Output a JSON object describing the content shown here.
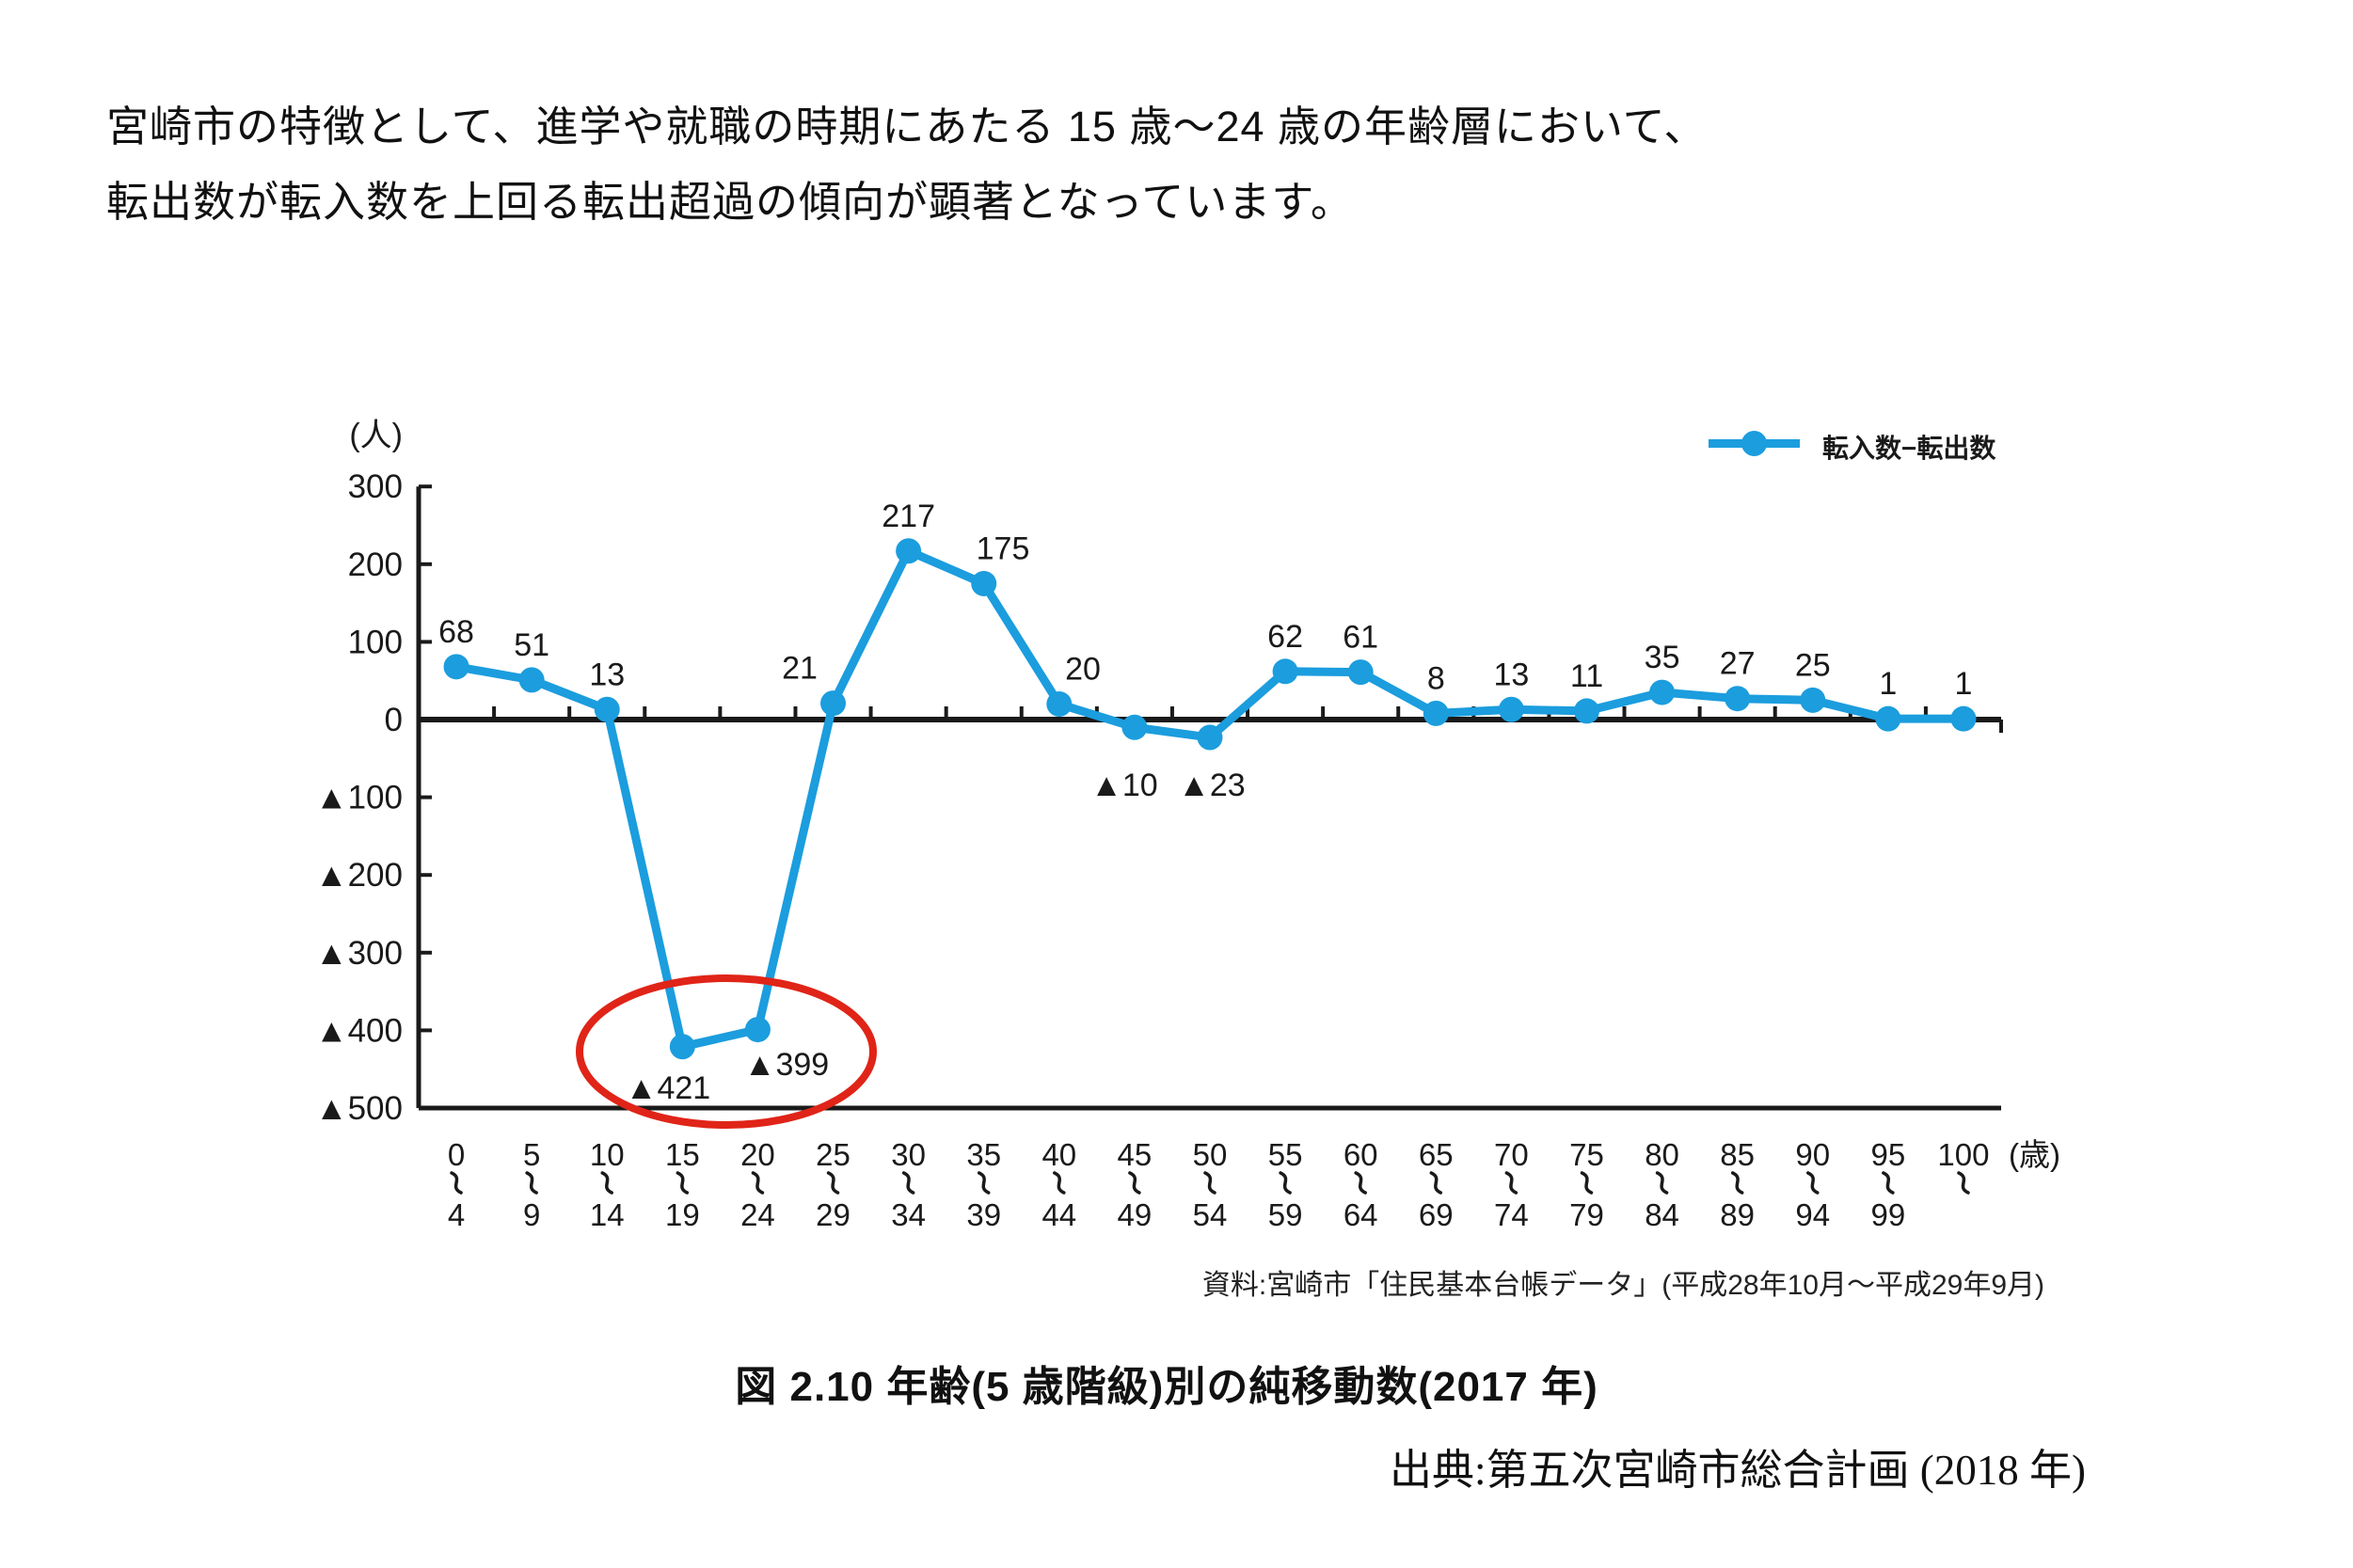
{
  "page": {
    "background": "#ffffff",
    "intro": {
      "line1": "宮崎市の特徴として、進学や就職の時期にあたる 15 歳〜24 歳の年齢層において、",
      "line2": "転出数が転入数を上回る転出超過の傾向が顕著となっています。"
    },
    "source_note": "資料:宮崎市「住民基本台帳データ」(平成28年10月〜平成29年9月)",
    "figure_caption": "図 2.10  年齢(5 歳階級)別の純移動数(2017 年)",
    "attribution": "出典:第五次宮崎市総合計画 (2018 年)"
  },
  "legend": {
    "label": "転入数−転出数",
    "marker": "line-dot",
    "color": "#1b9dde"
  },
  "chart_data": {
    "type": "line",
    "title": "年齢(5歳階級)別の純移動数(2017年)",
    "y_unit_label": "(人)",
    "x_unit_label": "(歳)",
    "range_separator": "〜",
    "age_from": [
      "0",
      "5",
      "10",
      "15",
      "20",
      "25",
      "30",
      "35",
      "40",
      "45",
      "50",
      "55",
      "60",
      "65",
      "70",
      "75",
      "80",
      "85",
      "90",
      "95",
      "100"
    ],
    "age_to": [
      "4",
      "9",
      "14",
      "19",
      "24",
      "29",
      "34",
      "39",
      "44",
      "49",
      "54",
      "59",
      "64",
      "69",
      "74",
      "79",
      "84",
      "89",
      "94",
      "99",
      ""
    ],
    "categories": [
      "0〜4",
      "5〜9",
      "10〜14",
      "15〜19",
      "20〜24",
      "25〜29",
      "30〜34",
      "35〜39",
      "40〜44",
      "45〜49",
      "50〜54",
      "55〜59",
      "60〜64",
      "65〜69",
      "70〜74",
      "75〜79",
      "80〜84",
      "85〜89",
      "90〜94",
      "95〜99",
      "100〜"
    ],
    "series": [
      {
        "name": "転入数−転出数",
        "color": "#1b9dde",
        "values": [
          68,
          51,
          13,
          -421,
          -399,
          21,
          217,
          175,
          20,
          -10,
          -23,
          62,
          61,
          8,
          13,
          11,
          35,
          27,
          25,
          1,
          1
        ]
      }
    ],
    "point_labels": [
      "68",
      "51",
      "13",
      "▲421",
      "▲399",
      "21",
      "217",
      "175",
      "20",
      "▲10",
      "▲23",
      "62",
      "61",
      "8",
      "13",
      "11",
      "35",
      "27",
      "25",
      "1",
      "1"
    ],
    "ylim": [
      -500,
      300
    ],
    "ytick_step": 100,
    "ytick_labels": [
      "300",
      "200",
      "100",
      "0",
      "▲100",
      "▲200",
      "▲300",
      "▲400",
      "▲500"
    ],
    "negative_prefix": "▲",
    "grid": false,
    "legend_position": "top-right",
    "highlight": {
      "note": "15〜19 と 20〜24 の転出超過を赤い楕円で強調",
      "color": "#e02418"
    },
    "axis_color": "#1a1a1a"
  }
}
